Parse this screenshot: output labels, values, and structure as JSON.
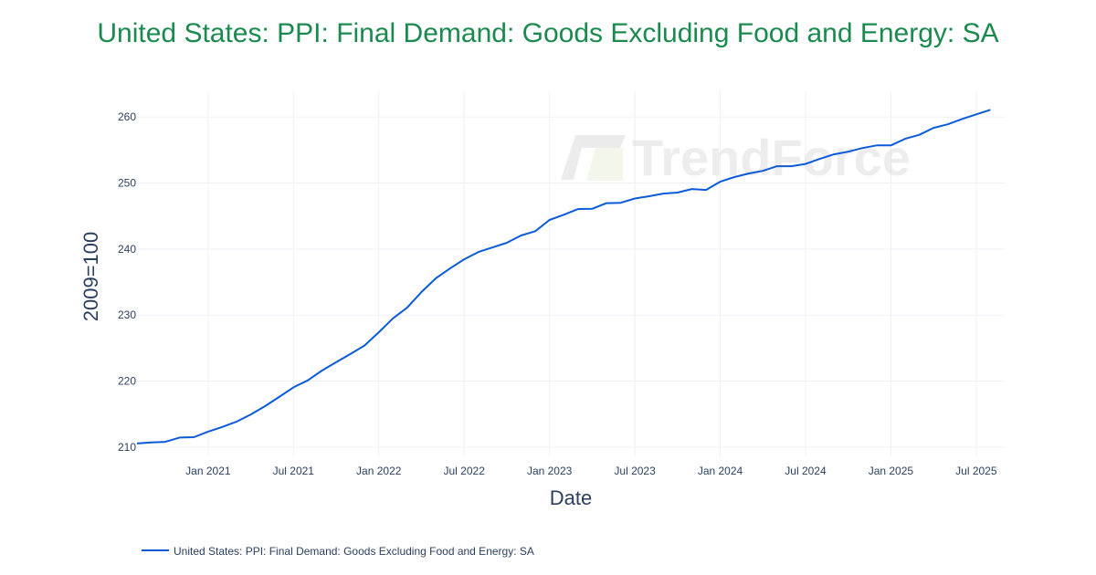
{
  "chart_data": {
    "type": "line",
    "title": "United States: PPI: Final Demand: Goods Excluding Food and Energy: SA",
    "xlabel": "Date",
    "ylabel": "2009=100",
    "xlim": [
      "2020-08",
      "2025-09"
    ],
    "ylim": [
      208.6,
      263.9
    ],
    "x_ticks": [
      {
        "date": "2021-01",
        "label": "Jan 2021"
      },
      {
        "date": "2021-07",
        "label": "Jul 2021"
      },
      {
        "date": "2022-01",
        "label": "Jan 2022"
      },
      {
        "date": "2022-07",
        "label": "Jul 2022"
      },
      {
        "date": "2023-01",
        "label": "Jan 2023"
      },
      {
        "date": "2023-07",
        "label": "Jul 2023"
      },
      {
        "date": "2024-01",
        "label": "Jan 2024"
      },
      {
        "date": "2024-07",
        "label": "Jul 2024"
      },
      {
        "date": "2025-01",
        "label": "Jan 2025"
      },
      {
        "date": "2025-07",
        "label": "Jul 2025"
      }
    ],
    "y_ticks": [
      210,
      220,
      230,
      240,
      250,
      260
    ],
    "grid": true,
    "legend_position": "bottom-left",
    "watermark": "TrendForce",
    "series": [
      {
        "name": "United States: PPI: Final Demand: Goods Excluding Food and Energy: SA",
        "color": "#0b5bd8",
        "start": "2020-08",
        "frequency": "monthly",
        "values": [
          210.55,
          210.7,
          210.8,
          211.45,
          211.5,
          212.35,
          213.05,
          213.85,
          214.95,
          216.2,
          217.6,
          219.05,
          220.1,
          221.6,
          222.85,
          224.1,
          225.4,
          227.4,
          229.5,
          231.15,
          233.5,
          235.55,
          237.05,
          238.45,
          239.55,
          240.25,
          240.95,
          242.05,
          242.7,
          244.4,
          245.2,
          246.05,
          246.1,
          246.95,
          247.0,
          247.65,
          248.0,
          248.4,
          248.55,
          249.1,
          248.95,
          250.2,
          250.9,
          251.45,
          251.85,
          252.55,
          252.55,
          252.9,
          253.65,
          254.35,
          254.75,
          255.3,
          255.7,
          255.7,
          256.7,
          257.3,
          258.35,
          258.9,
          259.7,
          260.4,
          261.1
        ]
      }
    ]
  }
}
